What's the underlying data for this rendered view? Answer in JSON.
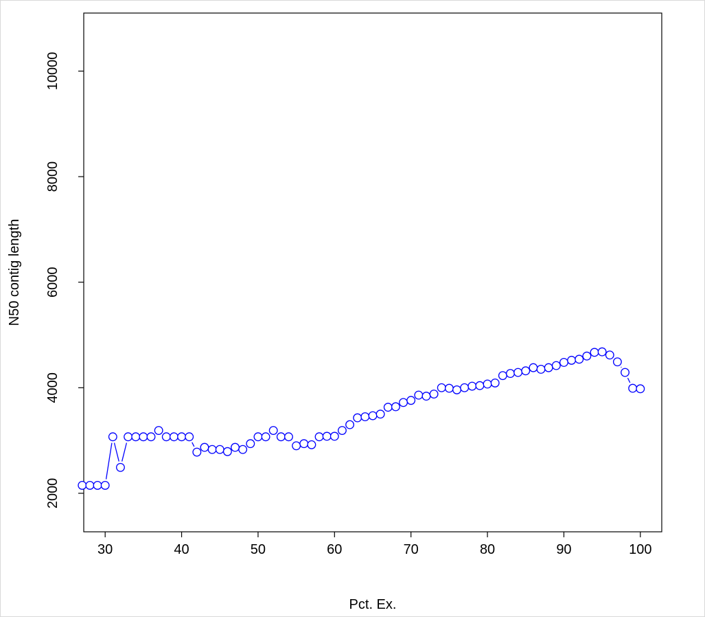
{
  "chart_data": {
    "type": "line",
    "xlabel": "Pct. Ex.",
    "ylabel": "N50 contig length",
    "xlim": [
      27.2,
      102.8
    ],
    "ylim": [
      1270,
      11100
    ],
    "x_ticks": [
      30,
      40,
      50,
      60,
      70,
      80,
      90,
      100
    ],
    "y_ticks": [
      2000,
      4000,
      6000,
      8000,
      10000
    ],
    "grid": false,
    "legend": "none",
    "colors": {
      "series": "#0000ff",
      "axes": "#000000"
    },
    "series": [
      {
        "marker": "open-circle",
        "line": true,
        "x": [
          27,
          28,
          29,
          30,
          31,
          32,
          33,
          34,
          35,
          36,
          37,
          38,
          39,
          40,
          41,
          42,
          43,
          44,
          45,
          46,
          47,
          48,
          49,
          50,
          51,
          52,
          53,
          54,
          55,
          56,
          57,
          58,
          59,
          60,
          61,
          62,
          63,
          64,
          65,
          66,
          67,
          68,
          69,
          70,
          71,
          72,
          73,
          74,
          75,
          76,
          77,
          78,
          79,
          80,
          81,
          82,
          83,
          84,
          85,
          86,
          87,
          88,
          89,
          90,
          91,
          92,
          93,
          94,
          95,
          96,
          97,
          98,
          99,
          100
        ],
        "y": [
          2150,
          2150,
          2150,
          2150,
          3070,
          2490,
          3070,
          3070,
          3070,
          3070,
          3190,
          3070,
          3070,
          3070,
          3070,
          2780,
          2870,
          2830,
          2830,
          2790,
          2870,
          2830,
          2940,
          3070,
          3070,
          3190,
          3070,
          3070,
          2900,
          2940,
          2920,
          3070,
          3080,
          3080,
          3190,
          3300,
          3430,
          3450,
          3470,
          3500,
          3630,
          3640,
          3720,
          3760,
          3860,
          3840,
          3880,
          4000,
          3990,
          3960,
          4000,
          4030,
          4040,
          4070,
          4090,
          4230,
          4270,
          4290,
          4320,
          4380,
          4350,
          4380,
          4420,
          4480,
          4520,
          4540,
          4600,
          4670,
          4680,
          4620,
          4490,
          4290,
          3990,
          3980
        ]
      }
    ]
  }
}
